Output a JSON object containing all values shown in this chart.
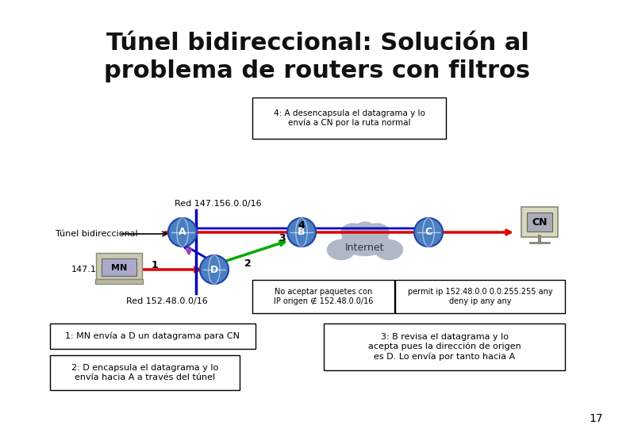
{
  "title_line1": "Túnel bidireccional: Solución al",
  "title_line2": "problema de routers con filtros",
  "title_fontsize": 22,
  "bg_color": "#ffffff",
  "box4_text": "4: A desencapsula el datagrama y lo\nenvía a CN por la ruta normal",
  "label_red1": "Red 147.156.0.0/16",
  "label_red2": "Red 152.48.0.0/16",
  "label_tunel": "Túnel bidireccional",
  "label_ip": "147.156.135.22",
  "label_internet": "Internet",
  "label_CN": "CN",
  "label_MN": "MN",
  "label_A": "A",
  "label_B": "B",
  "label_C": "C",
  "label_D": "D",
  "box_noacept": "No aceptar paquetes con\nIP origen ∉ 152.48.0.0/16",
  "box_permit": "permit ip 152.48.0.0 0.0.255.255 any\ndeny ip any any",
  "box1_text": "1: MN envía a D un datagrama para CN",
  "box2_text": "2: D encapsula el datagrama y lo\nenvía hacia A a través del túnel",
  "box3_text": "3: B revisa el datagrama y lo\nacepta pues la dirección de origen\nes D. Lo envía por tanto hacia A",
  "page_num": "17",
  "router_color": "#4a7fc1",
  "router_edge": "#2244aa",
  "red_line": "#dd0000",
  "blue_line": "#0000cc",
  "green_line": "#00aa00",
  "purple_line": "#aa44aa",
  "dark_line": "#222222"
}
